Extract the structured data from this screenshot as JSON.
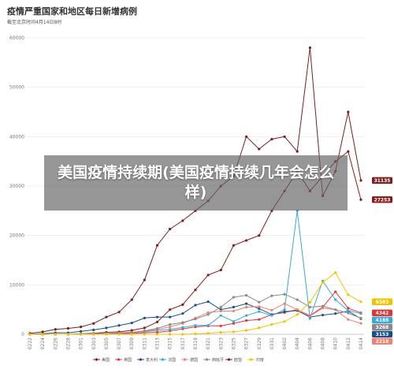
{
  "header": {
    "title": "疫情严重国家和地区每日新增病例",
    "subtitle": "截至北京时间4月14日8时"
  },
  "overlay": {
    "text": "美国疫情持续期(美国疫情持续几年会怎么样)"
  },
  "colors": {
    "美国": "#8b1a1a",
    "英国": "#e0363a",
    "意大利": "#1a4f8c",
    "法国": "#3aa8d8",
    "德国": "#f08070",
    "西班牙": "#8a8a8a",
    "欧盟": "#7a1f1f",
    "印度": "#f2c300"
  },
  "chart_data": {
    "type": "line",
    "title": "疫情严重国家和地区每日新增病例",
    "ylim": [
      0,
      60000
    ],
    "yticks": [
      0,
      10000,
      20000,
      30000,
      40000,
      50000,
      60000
    ],
    "legend_position": "bottom",
    "grid": true,
    "categories": [
      "0222",
      "0224",
      "0226",
      "0228",
      "0301",
      "0303",
      "0305",
      "0307",
      "0309",
      "0311",
      "0313",
      "0315",
      "0317",
      "0319",
      "0321",
      "0323",
      "0325",
      "0327",
      "0329",
      "0331",
      "0402",
      "0404",
      "0406",
      "0408",
      "0410",
      "0412",
      "0414"
    ],
    "series": [
      {
        "name": "美国",
        "end_label": "27253",
        "values": [
          0,
          0,
          0,
          0,
          100,
          200,
          400,
          500,
          800,
          1300,
          2500,
          5000,
          6000,
          9000,
          12000,
          13000,
          18000,
          19000,
          20000,
          25000,
          29000,
          33000,
          29000,
          32000,
          35000,
          37000,
          27253
        ]
      },
      {
        "name": "英国",
        "end_label": "4342",
        "values": [
          0,
          0,
          0,
          0,
          0,
          0,
          50,
          100,
          200,
          300,
          400,
          700,
          1100,
          1500,
          1700,
          1700,
          2200,
          2800,
          3000,
          4000,
          4400,
          5000,
          3800,
          5500,
          8600,
          5300,
          4342
        ]
      },
      {
        "name": "意大利",
        "end_label": "3153",
        "values": [
          50,
          100,
          300,
          300,
          600,
          900,
          1300,
          1800,
          2300,
          3300,
          3500,
          3500,
          4200,
          5900,
          6600,
          5000,
          5500,
          6200,
          5200,
          4000,
          4600,
          4800,
          3500,
          3900,
          4200,
          4700,
          3153
        ]
      },
      {
        "name": "法国",
        "end_label": "4188",
        "values": [
          0,
          0,
          0,
          0,
          50,
          100,
          150,
          300,
          400,
          500,
          800,
          1000,
          1400,
          1800,
          1800,
          3800,
          2600,
          3800,
          4600,
          3800,
          5000,
          25000,
          3200,
          10800,
          7000,
          4800,
          4188
        ]
      },
      {
        "name": "德国",
        "end_label": "2218",
        "values": [
          0,
          0,
          0,
          0,
          50,
          100,
          150,
          200,
          300,
          600,
          1000,
          1500,
          2200,
          3300,
          4400,
          4700,
          4700,
          5500,
          5600,
          4900,
          6200,
          5000,
          3700,
          5300,
          5000,
          3000,
          2218
        ]
      },
      {
        "name": "西班牙",
        "end_label": "3268",
        "values": [
          0,
          0,
          0,
          0,
          0,
          100,
          100,
          300,
          400,
          700,
          1200,
          2000,
          2400,
          3100,
          4000,
          5500,
          7500,
          7900,
          6500,
          7800,
          8100,
          7000,
          5500,
          5700,
          5000,
          4300,
          3268
        ]
      },
      {
        "name": "欧盟",
        "end_label": "31135",
        "values": [
          200,
          500,
          1000,
          1200,
          1500,
          2200,
          3500,
          4500,
          7000,
          11000,
          18000,
          21300,
          23000,
          25000,
          27000,
          30000,
          32000,
          40000,
          37500,
          39500,
          40000,
          37000,
          58000,
          28000,
          33000,
          45000,
          31135
        ]
      },
      {
        "name": "印度",
        "end_label": "6583",
        "values": [
          0,
          0,
          0,
          0,
          0,
          0,
          0,
          0,
          0,
          0,
          0,
          0,
          0,
          100,
          200,
          400,
          500,
          800,
          1300,
          2000,
          2600,
          4000,
          6500,
          10500,
          12500,
          8000,
          6583
        ]
      }
    ]
  }
}
